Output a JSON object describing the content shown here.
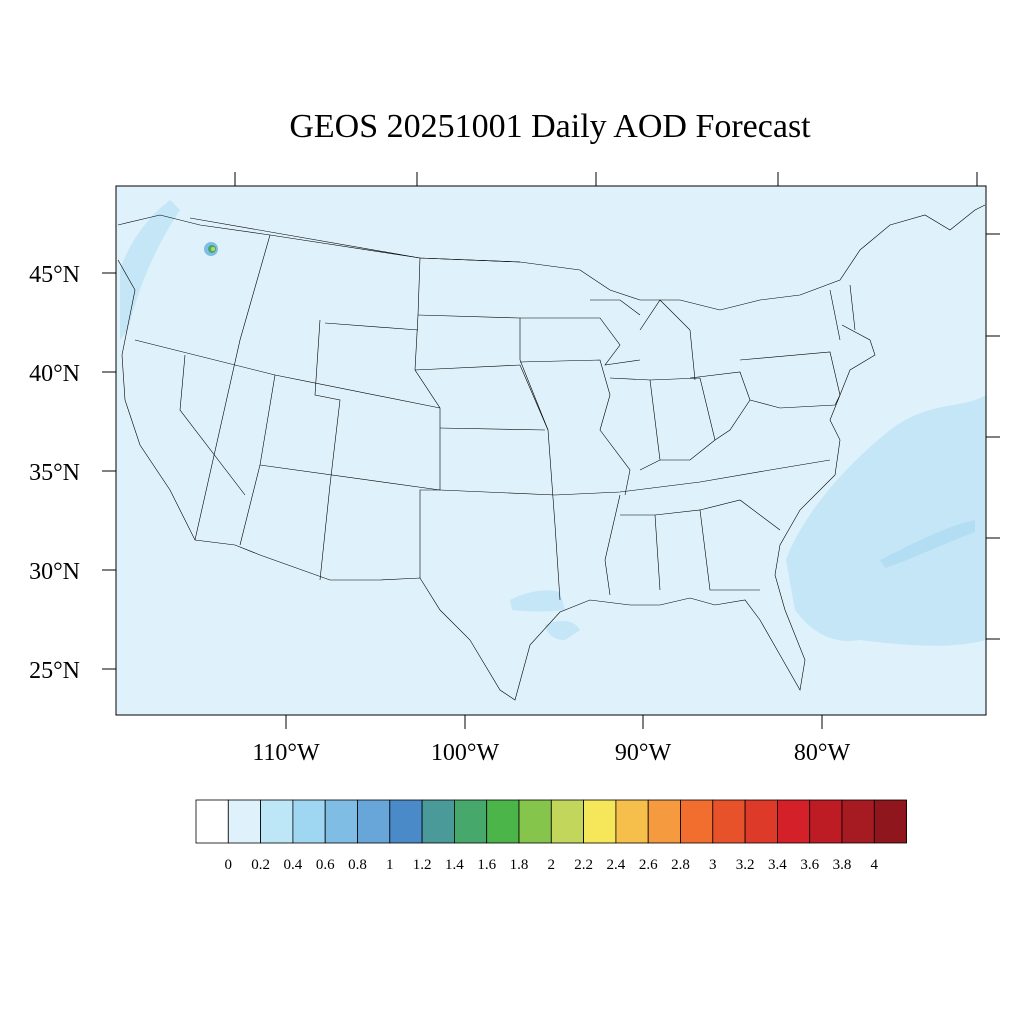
{
  "title": "GEOS 20251001 Daily AOD Forecast",
  "map": {
    "background_color": "#dff2fb",
    "latitude_labels": [
      "45°N",
      "40°N",
      "35°N",
      "30°N",
      "25°N"
    ],
    "longitude_labels": [
      "110°W",
      "100°W",
      "90°W",
      "80°W"
    ]
  },
  "colorbar": {
    "colors": [
      "#ffffff",
      "#dff2fb",
      "#bde6f7",
      "#9fd7f3",
      "#80bde4",
      "#68a6da",
      "#4a8ac8",
      "#4a9a9a",
      "#47a86c",
      "#4bb54a",
      "#86c54c",
      "#c1d65a",
      "#f6e65a",
      "#f6be4a",
      "#f59a3e",
      "#f26e2e",
      "#e8522b",
      "#de3a29",
      "#d42028",
      "#bd1c25",
      "#a61b22",
      "#8f161c"
    ],
    "labels": [
      "0",
      "0.2",
      "0.4",
      "0.6",
      "0.8",
      "1",
      "1.2",
      "1.4",
      "1.6",
      "1.8",
      "2",
      "2.2",
      "2.4",
      "2.6",
      "2.8",
      "3",
      "3.2",
      "3.4",
      "3.6",
      "3.8",
      "4"
    ]
  }
}
